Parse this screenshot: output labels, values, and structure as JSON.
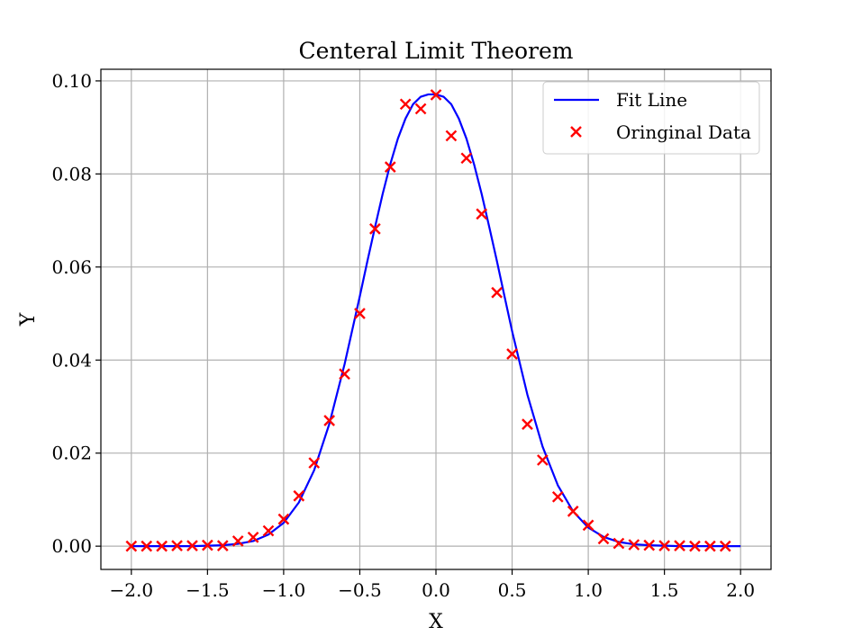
{
  "chart_data": {
    "type": "line",
    "title": "Centeral Limit Theorem",
    "xlabel": "X",
    "ylabel": "Y",
    "xlim": [
      -2.2,
      2.2
    ],
    "ylim": [
      -0.005,
      0.1025
    ],
    "grid": true,
    "legend_position": "top-right",
    "x_ticks": [
      -2.0,
      -1.5,
      -1.0,
      -0.5,
      0.0,
      0.5,
      1.0,
      1.5,
      2.0
    ],
    "x_tick_labels": [
      "−2.0",
      "−1.5",
      "−1.0",
      "−0.5",
      "0.0",
      "0.5",
      "1.0",
      "1.5",
      "2.0"
    ],
    "y_ticks": [
      0.0,
      0.02,
      0.04,
      0.06,
      0.08,
      0.1
    ],
    "y_tick_labels": [
      "0.00",
      "0.02",
      "0.04",
      "0.06",
      "0.08",
      "0.10"
    ],
    "series": [
      {
        "name": "Fit Line",
        "kind": "line",
        "color": "#0000ff",
        "x": [
          -2.0,
          -1.9,
          -1.8,
          -1.7,
          -1.6,
          -1.5,
          -1.4,
          -1.3,
          -1.2,
          -1.1,
          -1.0,
          -0.9,
          -0.8,
          -0.7,
          -0.6,
          -0.5,
          -0.45,
          -0.4,
          -0.35,
          -0.3,
          -0.25,
          -0.2,
          -0.15,
          -0.1,
          -0.05,
          0.0,
          0.05,
          0.1,
          0.15,
          0.2,
          0.25,
          0.3,
          0.35,
          0.4,
          0.45,
          0.5,
          0.6,
          0.7,
          0.8,
          0.9,
          1.0,
          1.1,
          1.2,
          1.3,
          1.4,
          1.5,
          1.6,
          1.7,
          1.8,
          1.9,
          2.0
        ],
        "y": [
          0.0,
          0.0,
          0.0,
          0.0,
          0.0,
          0.0001,
          0.0002,
          0.0005,
          0.0011,
          0.0025,
          0.005,
          0.0094,
          0.0163,
          0.0263,
          0.0391,
          0.0537,
          0.0613,
          0.0686,
          0.0757,
          0.0821,
          0.0876,
          0.0919,
          0.095,
          0.0966,
          0.0971,
          0.0971,
          0.0966,
          0.095,
          0.0919,
          0.0876,
          0.0821,
          0.0757,
          0.0686,
          0.0613,
          0.0537,
          0.0462,
          0.0326,
          0.0214,
          0.0131,
          0.0075,
          0.004,
          0.002,
          0.0009,
          0.0004,
          0.0002,
          0.0001,
          0.0,
          0.0,
          0.0,
          0.0,
          0.0
        ]
      },
      {
        "name": "Oringinal Data",
        "kind": "scatter",
        "color": "#ff0000",
        "marker": "x",
        "x": [
          -2.0,
          -1.9,
          -1.8,
          -1.7,
          -1.6,
          -1.5,
          -1.4,
          -1.3,
          -1.2,
          -1.1,
          -1.0,
          -0.9,
          -0.8,
          -0.7,
          -0.6,
          -0.5,
          -0.4,
          -0.3,
          -0.2,
          -0.1,
          0.0,
          0.1,
          0.2,
          0.3,
          0.4,
          0.5,
          0.6,
          0.7,
          0.8,
          0.9,
          1.0,
          1.1,
          1.2,
          1.3,
          1.4,
          1.5,
          1.6,
          1.7,
          1.8,
          1.9
        ],
        "y": [
          0.0,
          0.0,
          0.0,
          0.0001,
          0.0001,
          0.0002,
          0.0001,
          0.0011,
          0.0019,
          0.0033,
          0.0058,
          0.0108,
          0.0179,
          0.027,
          0.037,
          0.05,
          0.0682,
          0.0815,
          0.095,
          0.094,
          0.097,
          0.0882,
          0.0834,
          0.0714,
          0.0545,
          0.0413,
          0.0262,
          0.0185,
          0.0106,
          0.0075,
          0.0045,
          0.0016,
          0.0006,
          0.0003,
          0.0002,
          0.0001,
          0.0001,
          0.0,
          0.0,
          0.0
        ]
      }
    ]
  }
}
